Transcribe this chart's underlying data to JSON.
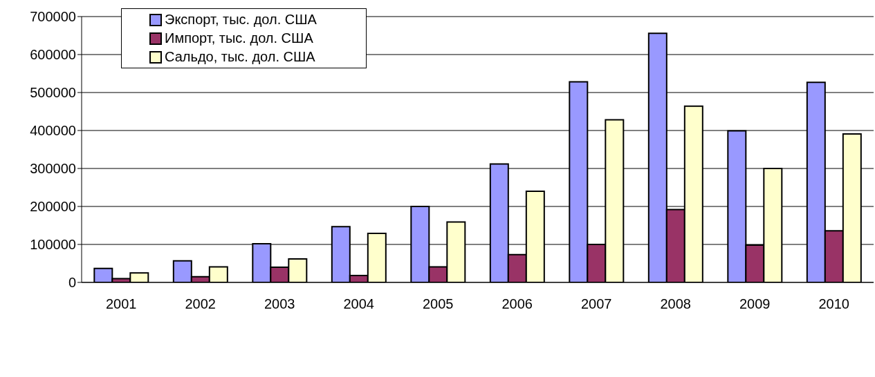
{
  "chart_data": {
    "type": "bar",
    "categories": [
      "2001",
      "2002",
      "2003",
      "2004",
      "2005",
      "2006",
      "2007",
      "2008",
      "2009",
      "2010"
    ],
    "series": [
      {
        "name": "Экспорт, тыс. дол. США",
        "color": "#9999ff",
        "values": [
          37000,
          57000,
          102000,
          147000,
          200000,
          312000,
          528000,
          656000,
          399000,
          527000
        ]
      },
      {
        "name": "Импорт, тыс. дол. США",
        "color": "#993366",
        "values": [
          10000,
          15000,
          40000,
          18000,
          41000,
          73000,
          100000,
          192000,
          98000,
          136000
        ]
      },
      {
        "name": "Сальдо, тыс. дол. США",
        "color": "#ffffcc",
        "values": [
          25000,
          41000,
          62000,
          129000,
          159000,
          240000,
          428000,
          464000,
          300000,
          391000
        ]
      }
    ],
    "ylim": [
      0,
      700000
    ],
    "yticks": [
      0,
      100000,
      200000,
      300000,
      400000,
      500000,
      600000,
      700000
    ],
    "grid": "y",
    "legend": "top left"
  }
}
